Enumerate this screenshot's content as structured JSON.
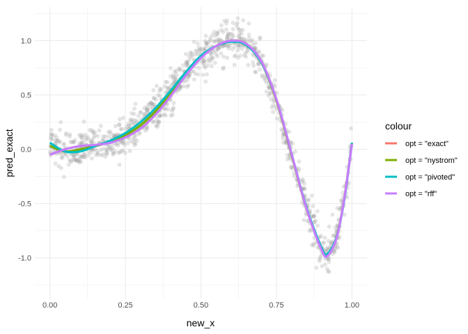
{
  "chart_data": {
    "type": "line",
    "title": "",
    "xlabel": "new_x",
    "ylabel": "pred_exact",
    "xlim": [
      -0.05,
      1.05
    ],
    "ylim": [
      -1.38,
      1.31
    ],
    "x_ticks": [
      "0.00",
      "0.25",
      "0.50",
      "0.75",
      "1.00"
    ],
    "x_tick_values": [
      0,
      0.25,
      0.5,
      0.75,
      1
    ],
    "y_ticks": [
      "-1.0",
      "-0.5",
      "0.0",
      "0.5",
      "1.0"
    ],
    "y_tick_values": [
      -1,
      -0.5,
      0,
      0.5,
      1
    ],
    "grid": true,
    "legend": {
      "title": "colour",
      "position": "right"
    },
    "x": [
      0,
      0.05,
      0.1,
      0.15,
      0.2,
      0.25,
      0.3,
      0.35,
      0.4,
      0.45,
      0.5,
      0.55,
      0.6,
      0.65,
      0.7,
      0.75,
      0.8,
      0.85,
      0.9,
      0.92,
      0.95,
      0.975,
      1.0
    ],
    "series": [
      {
        "name": "opt = \"exact\"",
        "color": "#F8766D",
        "values": [
          0.03,
          -0.02,
          0.0,
          0.03,
          0.07,
          0.13,
          0.22,
          0.35,
          0.52,
          0.7,
          0.85,
          0.95,
          1.0,
          0.97,
          0.8,
          0.45,
          -0.05,
          -0.55,
          -0.92,
          -0.97,
          -0.8,
          -0.45,
          0.06
        ]
      },
      {
        "name": "opt = \"nystrom\"",
        "color": "#7CAE00",
        "values": [
          0.03,
          -0.02,
          0.0,
          0.03,
          0.07,
          0.13,
          0.22,
          0.35,
          0.51,
          0.69,
          0.85,
          0.95,
          1.0,
          0.97,
          0.8,
          0.45,
          -0.05,
          -0.55,
          -0.92,
          -0.97,
          -0.8,
          -0.45,
          0.06
        ]
      },
      {
        "name": "opt = \"pivoted\"",
        "color": "#00BFC4",
        "values": [
          0.06,
          -0.02,
          -0.02,
          0.03,
          0.08,
          0.15,
          0.25,
          0.38,
          0.54,
          0.71,
          0.86,
          0.95,
          0.99,
          0.96,
          0.8,
          0.46,
          -0.04,
          -0.54,
          -0.91,
          -0.96,
          -0.8,
          -0.46,
          0.06
        ]
      },
      {
        "name": "opt = \"rff\"",
        "color": "#C77CFF",
        "values": [
          -0.05,
          0.0,
          0.03,
          0.04,
          0.06,
          0.11,
          0.19,
          0.32,
          0.49,
          0.68,
          0.84,
          0.95,
          1.0,
          0.97,
          0.81,
          0.46,
          -0.04,
          -0.55,
          -0.93,
          -0.98,
          -0.81,
          -0.45,
          0.05
        ]
      }
    ],
    "scatter": {
      "color": "#999999",
      "opacity": 0.25,
      "noise_sd": 0.09
    }
  }
}
